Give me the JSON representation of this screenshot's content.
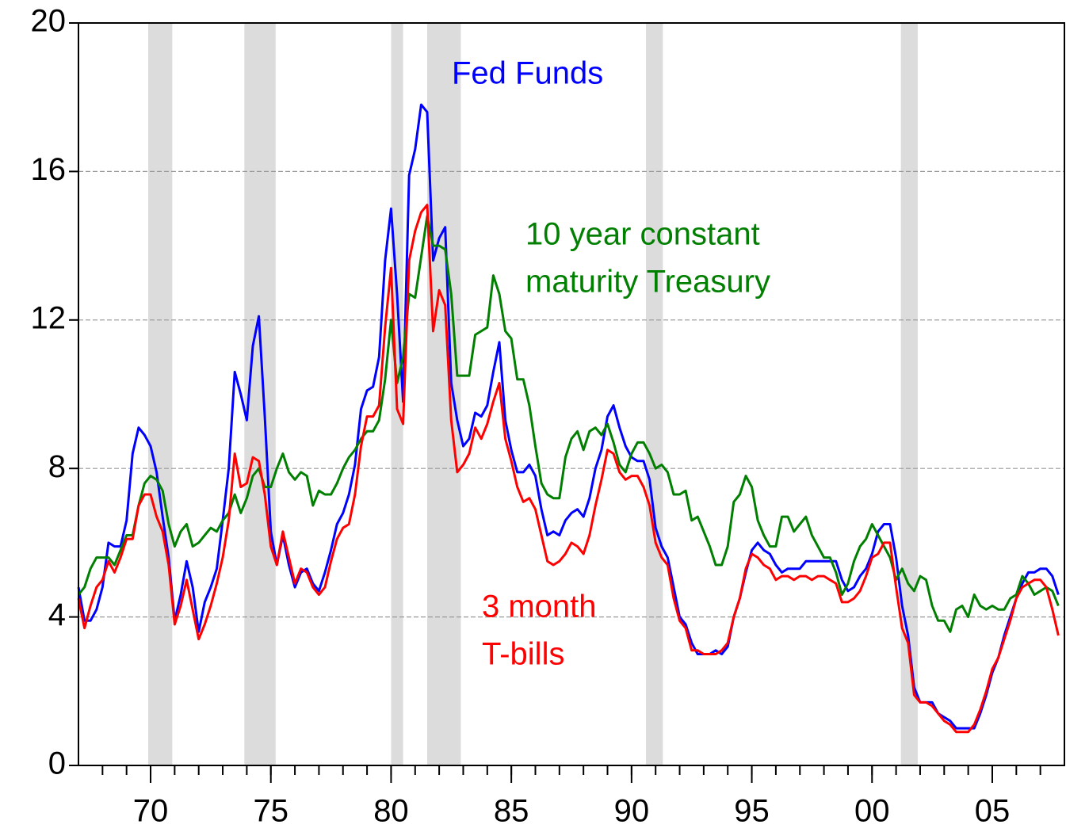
{
  "chart_data": {
    "type": "line",
    "ylim": [
      0,
      20
    ],
    "yticks": [
      0,
      4,
      8,
      12,
      16,
      20
    ],
    "xlim": [
      1967,
      2008
    ],
    "xticks": [
      {
        "value": 1970,
        "label": "70"
      },
      {
        "value": 1975,
        "label": "75"
      },
      {
        "value": 1980,
        "label": "80"
      },
      {
        "value": 1985,
        "label": "85"
      },
      {
        "value": 1990,
        "label": "90"
      },
      {
        "value": 1995,
        "label": "95"
      },
      {
        "value": 2000,
        "label": "00"
      },
      {
        "value": 2005,
        "label": "05"
      }
    ],
    "grid": true,
    "recessions": [
      [
        1969.9,
        1970.9
      ],
      [
        1973.9,
        1975.2
      ],
      [
        1980.0,
        1980.5
      ],
      [
        1981.5,
        1982.9
      ],
      [
        1990.6,
        1991.3
      ],
      [
        2001.2,
        2001.9
      ]
    ],
    "recession_color": "#dcdcdc",
    "x": [
      1967,
      1967.25,
      1967.5,
      1967.75,
      1968,
      1968.25,
      1968.5,
      1968.75,
      1969,
      1969.25,
      1969.5,
      1969.75,
      1970,
      1970.25,
      1970.5,
      1970.75,
      1971,
      1971.25,
      1971.5,
      1971.75,
      1972,
      1972.25,
      1972.5,
      1972.75,
      1973,
      1973.25,
      1973.5,
      1973.75,
      1974,
      1974.25,
      1974.5,
      1974.75,
      1975,
      1975.25,
      1975.5,
      1975.75,
      1976,
      1976.25,
      1976.5,
      1976.75,
      1977,
      1977.25,
      1977.5,
      1977.75,
      1978,
      1978.25,
      1978.5,
      1978.75,
      1979,
      1979.25,
      1979.5,
      1979.75,
      1980,
      1980.25,
      1980.5,
      1980.75,
      1981,
      1981.25,
      1981.5,
      1981.75,
      1982,
      1982.25,
      1982.5,
      1982.75,
      1983,
      1983.25,
      1983.5,
      1983.75,
      1984,
      1984.25,
      1984.5,
      1984.75,
      1985,
      1985.25,
      1985.5,
      1985.75,
      1986,
      1986.25,
      1986.5,
      1986.75,
      1987,
      1987.25,
      1987.5,
      1987.75,
      1988,
      1988.25,
      1988.5,
      1988.75,
      1989,
      1989.25,
      1989.5,
      1989.75,
      1990,
      1990.25,
      1990.5,
      1990.75,
      1991,
      1991.25,
      1991.5,
      1991.75,
      1992,
      1992.25,
      1992.5,
      1992.75,
      1993,
      1993.25,
      1993.5,
      1993.75,
      1994,
      1994.25,
      1994.5,
      1994.75,
      1995,
      1995.25,
      1995.5,
      1995.75,
      1996,
      1996.25,
      1996.5,
      1996.75,
      1997,
      1997.25,
      1997.5,
      1997.75,
      1998,
      1998.25,
      1998.5,
      1998.75,
      1999,
      1999.25,
      1999.5,
      1999.75,
      2000,
      2000.25,
      2000.5,
      2000.75,
      2001,
      2001.25,
      2001.5,
      2001.75,
      2002,
      2002.25,
      2002.5,
      2002.75,
      2003,
      2003.25,
      2003.5,
      2003.75,
      2004,
      2004.25,
      2004.5,
      2004.75,
      2005,
      2005.25,
      2005.5,
      2005.75,
      2006,
      2006.25,
      2006.5,
      2006.75,
      2007,
      2007.25,
      2007.5,
      2007.75
    ],
    "series": [
      {
        "name": "Fed Funds",
        "color": "#0000ff",
        "values": [
          4.8,
          3.9,
          3.9,
          4.2,
          4.8,
          6.0,
          5.9,
          5.9,
          6.6,
          8.4,
          9.1,
          8.9,
          8.6,
          7.9,
          6.7,
          5.6,
          3.9,
          4.6,
          5.5,
          4.8,
          3.6,
          4.4,
          4.8,
          5.3,
          6.6,
          8.0,
          10.6,
          10.0,
          9.3,
          11.3,
          12.1,
          9.4,
          6.3,
          5.4,
          6.2,
          5.4,
          4.8,
          5.2,
          5.3,
          4.9,
          4.7,
          5.2,
          5.8,
          6.5,
          6.8,
          7.3,
          8.1,
          9.6,
          10.1,
          10.2,
          11.0,
          13.6,
          15.0,
          12.7,
          9.8,
          15.9,
          16.6,
          17.8,
          17.6,
          13.6,
          14.2,
          14.5,
          10.3,
          9.3,
          8.6,
          8.8,
          9.5,
          9.4,
          9.7,
          10.6,
          11.4,
          9.3,
          8.5,
          7.9,
          7.9,
          8.1,
          7.8,
          6.9,
          6.2,
          6.3,
          6.2,
          6.6,
          6.8,
          6.9,
          6.7,
          7.2,
          8.0,
          8.5,
          9.4,
          9.7,
          9.1,
          8.6,
          8.3,
          8.2,
          8.2,
          7.7,
          6.4,
          5.9,
          5.6,
          4.8,
          4.0,
          3.8,
          3.3,
          3.0,
          3.0,
          3.0,
          3.1,
          3.0,
          3.2,
          4.0,
          4.5,
          5.2,
          5.8,
          6.0,
          5.8,
          5.7,
          5.4,
          5.2,
          5.3,
          5.3,
          5.3,
          5.5,
          5.5,
          5.5,
          5.5,
          5.5,
          5.5,
          5.0,
          4.7,
          4.8,
          5.1,
          5.3,
          5.7,
          6.3,
          6.5,
          6.5,
          5.6,
          4.3,
          3.5,
          2.1,
          1.7,
          1.7,
          1.7,
          1.4,
          1.3,
          1.2,
          1.0,
          1.0,
          1.0,
          1.0,
          1.4,
          1.9,
          2.5,
          2.9,
          3.5,
          4.0,
          4.5,
          4.9,
          5.2,
          5.2,
          5.3,
          5.3,
          5.1,
          4.6
        ]
      },
      {
        "name": "10 year constant maturity Treasury",
        "color": "#007f00",
        "values": [
          4.6,
          4.8,
          5.3,
          5.6,
          5.6,
          5.6,
          5.4,
          5.8,
          6.2,
          6.2,
          7.0,
          7.6,
          7.8,
          7.7,
          7.4,
          6.5,
          5.9,
          6.3,
          6.5,
          5.9,
          6.0,
          6.2,
          6.4,
          6.3,
          6.6,
          6.8,
          7.3,
          6.8,
          7.2,
          7.8,
          8.0,
          7.5,
          7.5,
          8.0,
          8.4,
          7.9,
          7.7,
          7.9,
          7.8,
          7.0,
          7.4,
          7.3,
          7.3,
          7.6,
          8.0,
          8.3,
          8.5,
          8.8,
          9.0,
          9.0,
          9.3,
          10.4,
          12.0,
          10.3,
          11.0,
          12.7,
          12.6,
          13.7,
          14.8,
          14.0,
          14.0,
          13.9,
          12.7,
          10.5,
          10.5,
          10.5,
          11.6,
          11.7,
          11.8,
          13.2,
          12.7,
          11.7,
          11.5,
          10.4,
          10.4,
          9.7,
          8.6,
          7.6,
          7.3,
          7.2,
          7.2,
          8.3,
          8.8,
          9.0,
          8.5,
          9.0,
          9.1,
          8.9,
          9.2,
          8.7,
          8.1,
          7.9,
          8.4,
          8.7,
          8.7,
          8.4,
          8.0,
          8.1,
          7.9,
          7.3,
          7.3,
          7.4,
          6.6,
          6.7,
          6.3,
          5.9,
          5.4,
          5.4,
          5.9,
          7.1,
          7.3,
          7.8,
          7.5,
          6.6,
          6.2,
          5.9,
          5.9,
          6.7,
          6.7,
          6.3,
          6.5,
          6.7,
          6.2,
          5.9,
          5.6,
          5.6,
          5.2,
          4.6,
          4.9,
          5.5,
          5.9,
          6.1,
          6.5,
          6.2,
          5.9,
          5.6,
          5.0,
          5.3,
          4.9,
          4.7,
          5.1,
          5.0,
          4.3,
          3.9,
          3.9,
          3.6,
          4.2,
          4.3,
          4.0,
          4.6,
          4.3,
          4.2,
          4.3,
          4.2,
          4.2,
          4.5,
          4.6,
          5.1,
          4.9,
          4.6,
          4.7,
          4.8,
          4.7,
          4.3
        ]
      },
      {
        "name": "3 month T-bills",
        "color": "#ff0000",
        "values": [
          4.5,
          3.7,
          4.3,
          4.8,
          5.0,
          5.5,
          5.2,
          5.6,
          6.1,
          6.1,
          7.0,
          7.3,
          7.3,
          6.7,
          6.3,
          5.4,
          3.8,
          4.3,
          5.0,
          4.2,
          3.4,
          3.8,
          4.3,
          4.9,
          5.6,
          6.6,
          8.4,
          7.5,
          7.6,
          8.3,
          8.2,
          7.3,
          5.9,
          5.4,
          6.3,
          5.6,
          4.9,
          5.3,
          5.2,
          4.8,
          4.6,
          4.8,
          5.5,
          6.1,
          6.4,
          6.5,
          7.3,
          8.6,
          9.4,
          9.4,
          9.7,
          11.8,
          13.4,
          9.6,
          9.2,
          13.6,
          14.4,
          14.9,
          15.1,
          11.7,
          12.8,
          12.4,
          9.3,
          7.9,
          8.1,
          8.4,
          9.1,
          8.8,
          9.2,
          9.8,
          10.3,
          8.8,
          8.2,
          7.5,
          7.1,
          7.2,
          6.9,
          6.2,
          5.5,
          5.4,
          5.5,
          5.7,
          6.0,
          5.9,
          5.7,
          6.2,
          7.0,
          7.7,
          8.5,
          8.4,
          7.9,
          7.7,
          7.8,
          7.8,
          7.5,
          7.0,
          6.0,
          5.6,
          5.4,
          4.5,
          3.9,
          3.7,
          3.1,
          3.1,
          3.0,
          3.0,
          3.0,
          3.1,
          3.3,
          4.0,
          4.5,
          5.3,
          5.7,
          5.6,
          5.4,
          5.3,
          5.0,
          5.1,
          5.1,
          5.0,
          5.1,
          5.1,
          5.0,
          5.1,
          5.1,
          5.0,
          4.9,
          4.4,
          4.4,
          4.5,
          4.7,
          5.1,
          5.6,
          5.7,
          6.0,
          6.0,
          4.8,
          3.7,
          3.3,
          1.9,
          1.7,
          1.7,
          1.6,
          1.4,
          1.2,
          1.1,
          0.9,
          0.9,
          0.9,
          1.1,
          1.5,
          2.0,
          2.6,
          2.9,
          3.4,
          3.9,
          4.5,
          4.8,
          4.9,
          5.0,
          5.0,
          4.8,
          4.2,
          3.5
        ]
      }
    ],
    "annotations": [
      {
        "lines": [
          "Fed Funds"
        ],
        "color": "#0000ff"
      },
      {
        "lines": [
          "10 year constant",
          "maturity Treasury"
        ],
        "color": "#007f00"
      },
      {
        "lines": [
          "3 month",
          "T-bills"
        ],
        "color": "#ff0000"
      }
    ]
  }
}
